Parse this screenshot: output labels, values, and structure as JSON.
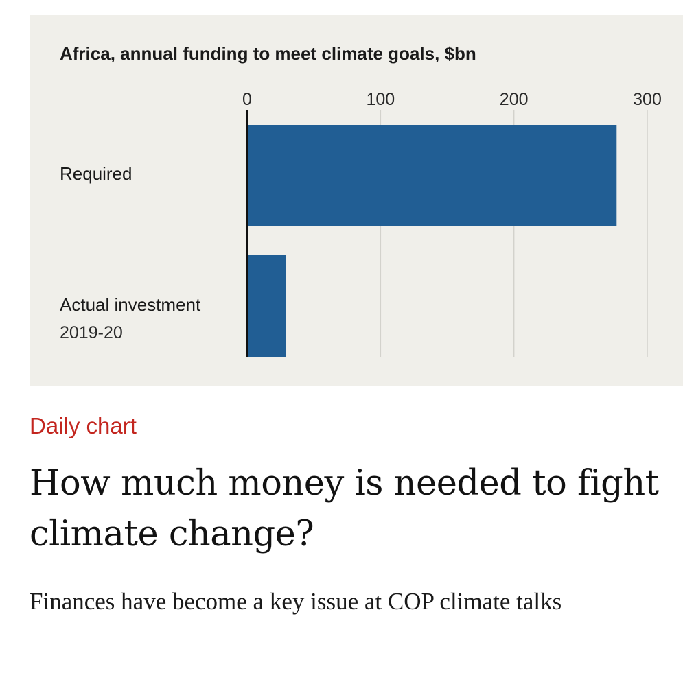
{
  "chart_data": {
    "type": "bar",
    "orientation": "horizontal",
    "title": "Africa, annual funding to meet climate goals, $bn",
    "categories": [
      "Required",
      "Actual investment"
    ],
    "category_sublabels": [
      "",
      "2019-20"
    ],
    "values": [
      277,
      29
    ],
    "xlim": [
      0,
      300
    ],
    "xticks": [
      0,
      100,
      200,
      300
    ],
    "xtick_labels": [
      "0",
      "100",
      "200",
      "300"
    ],
    "xlabel": "",
    "ylabel": "",
    "grid": true,
    "bar_color": "#215e94",
    "background": "#f0efea"
  },
  "article": {
    "kicker": "Daily chart",
    "kicker_color": "#c3261f",
    "headline": "How much money is needed to fight climate change?",
    "subheadline": "Finances have become a key issue at COP climate talks"
  }
}
